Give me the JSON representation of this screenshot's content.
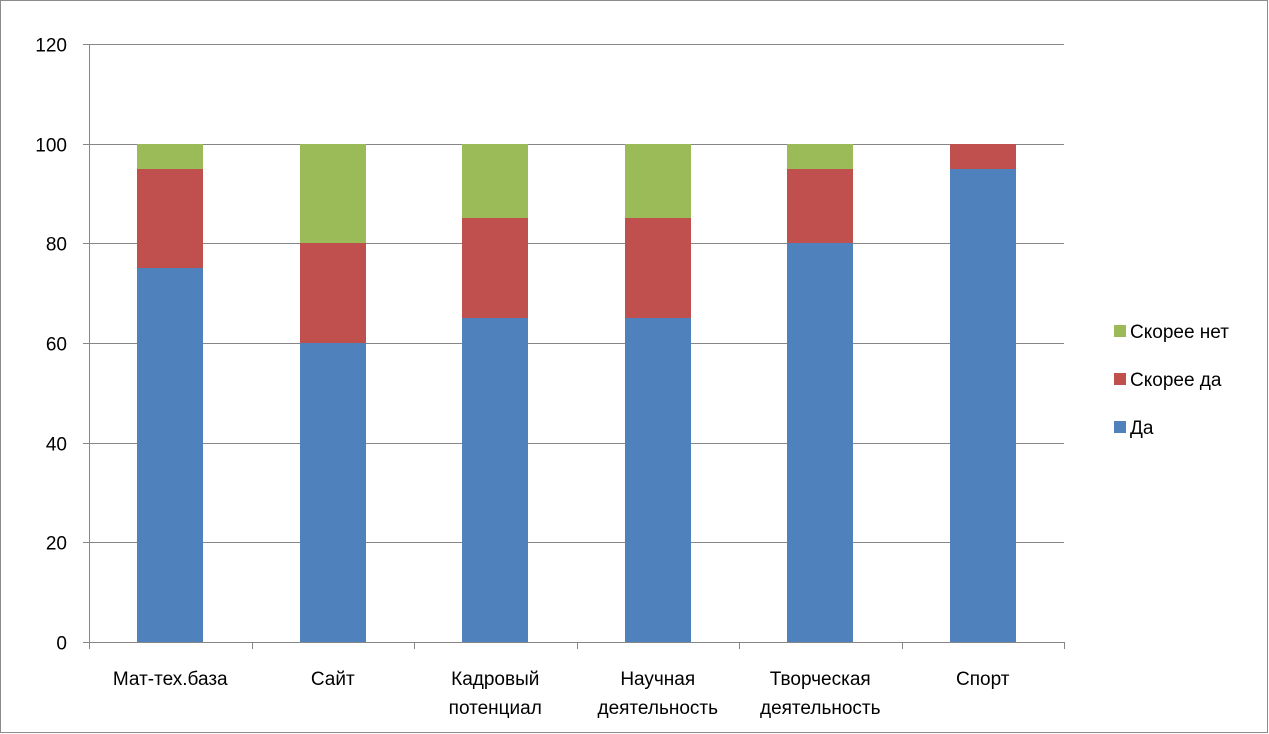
{
  "chart_data": {
    "type": "bar",
    "stacked": true,
    "categories": [
      [
        "Мат-тех.база"
      ],
      [
        "Сайт"
      ],
      [
        "Кадровый",
        "потенциал"
      ],
      [
        "Научная",
        "деятельность"
      ],
      [
        "Творческая",
        "деятельность"
      ],
      [
        "Спорт"
      ]
    ],
    "series": [
      {
        "name": "Да",
        "color": "#4f81bd",
        "values": [
          75,
          60,
          65,
          65,
          80,
          95
        ]
      },
      {
        "name": "Скорее да",
        "color": "#c0504d",
        "values": [
          20,
          20,
          20,
          20,
          15,
          5
        ]
      },
      {
        "name": "Скорее нет",
        "color": "#9bbb59",
        "values": [
          5,
          20,
          15,
          15,
          5,
          0
        ]
      }
    ],
    "ylim": [
      0,
      120
    ],
    "yticks": [
      "0",
      "20",
      "40",
      "60",
      "80",
      "100",
      "120"
    ],
    "grid": true,
    "legend_position": "right",
    "legend_order": [
      "Скорее нет",
      "Скорее да",
      "Да"
    ],
    "gridline_color": "#868686",
    "title": "",
    "xlabel": "",
    "ylabel": ""
  }
}
